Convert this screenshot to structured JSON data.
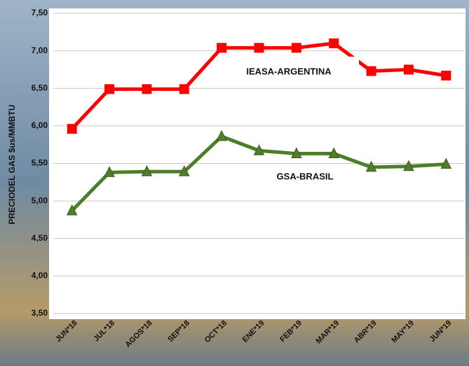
{
  "chart_data": {
    "type": "line",
    "y_label": "PRECIODEL GAS $us/MMBTU",
    "categories": [
      "JUN*18",
      "JUL*18",
      "AGOS*18",
      "SEP*18",
      "OCT*18",
      "ENE*19",
      "FEB*19",
      "MAR*19",
      "ABR*19",
      "MAY*19",
      "JUN*19"
    ],
    "series": [
      {
        "name": "IEASA-ARGENTINA",
        "color": "#ff0000",
        "marker": "square",
        "values": [
          5.96,
          6.49,
          6.49,
          6.49,
          7.04,
          7.04,
          7.04,
          7.1,
          6.73,
          6.75,
          6.67
        ]
      },
      {
        "name": "GSA-BRASIL",
        "color": "#4f7d2a",
        "marker": "triangle",
        "values": [
          4.87,
          5.38,
          5.39,
          5.39,
          5.86,
          5.67,
          5.63,
          5.63,
          5.45,
          5.46,
          5.49
        ]
      }
    ],
    "ylim": [
      3.5,
      7.5
    ],
    "yticks": [
      {
        "value": 3.5,
        "label": "3,50"
      },
      {
        "value": 4.0,
        "label": "4,00"
      },
      {
        "value": 4.5,
        "label": "4,50"
      },
      {
        "value": 5.0,
        "label": "5,00"
      },
      {
        "value": 5.5,
        "label": "5,50"
      },
      {
        "value": 6.0,
        "label": "6,00"
      },
      {
        "value": 6.5,
        "label": "6,50"
      },
      {
        "value": 7.0,
        "label": "7,00"
      },
      {
        "value": 7.5,
        "label": "7,50"
      }
    ],
    "grid": true
  }
}
